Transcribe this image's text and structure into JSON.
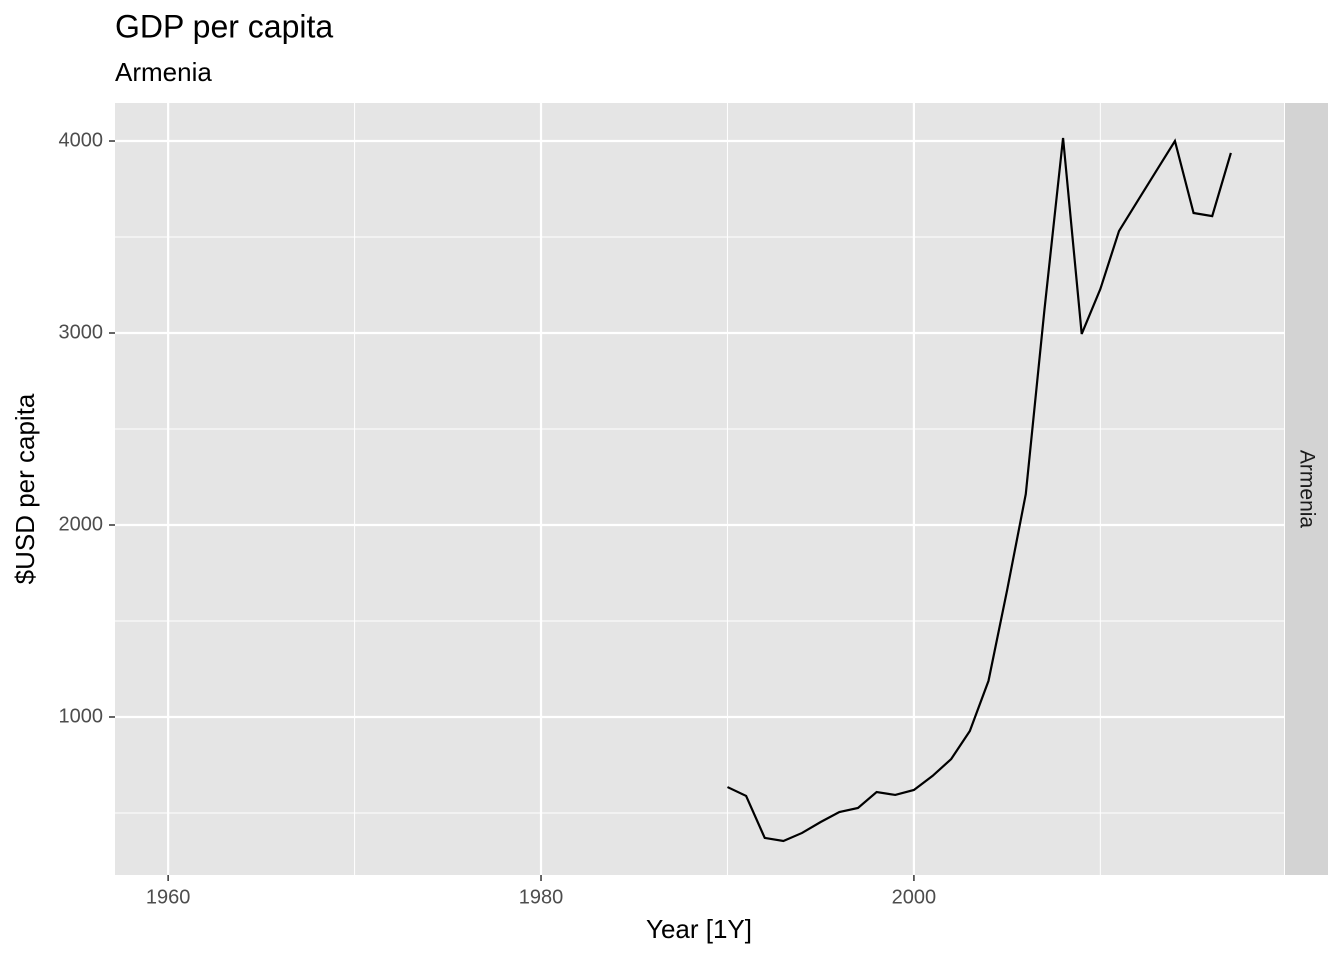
{
  "chart_data": {
    "type": "line",
    "title": "GDP per capita",
    "subtitle": "Armenia",
    "x_label": "Year [1Y]",
    "y_label": "$USD per capita",
    "facet_label": "Armenia",
    "x": [
      1990,
      1991,
      1992,
      1993,
      1994,
      1995,
      1996,
      1997,
      1998,
      1999,
      2000,
      2001,
      2002,
      2003,
      2004,
      2005,
      2006,
      2007,
      2008,
      2009,
      2010,
      2011,
      2012,
      2013,
      2014,
      2015,
      2016,
      2017
    ],
    "series": [
      {
        "color": "#000000",
        "values": [
          635,
          589,
          370,
          354,
          396,
          453,
          505,
          526,
          609,
          594,
          620,
          693,
          781,
          927,
          1188,
          1661,
          2161,
          3120,
          4016,
          2995,
          3229,
          3531,
          3688,
          3844,
          4000,
          3625,
          3609,
          3938
        ]
      }
    ],
    "xlim": [
      1957.15,
      2019.85
    ],
    "xticks": [
      1960,
      1980,
      2000
    ],
    "ylim": [
      177,
      4198
    ],
    "yticks": [
      1000,
      2000,
      3000,
      4000
    ],
    "grid": true
  }
}
